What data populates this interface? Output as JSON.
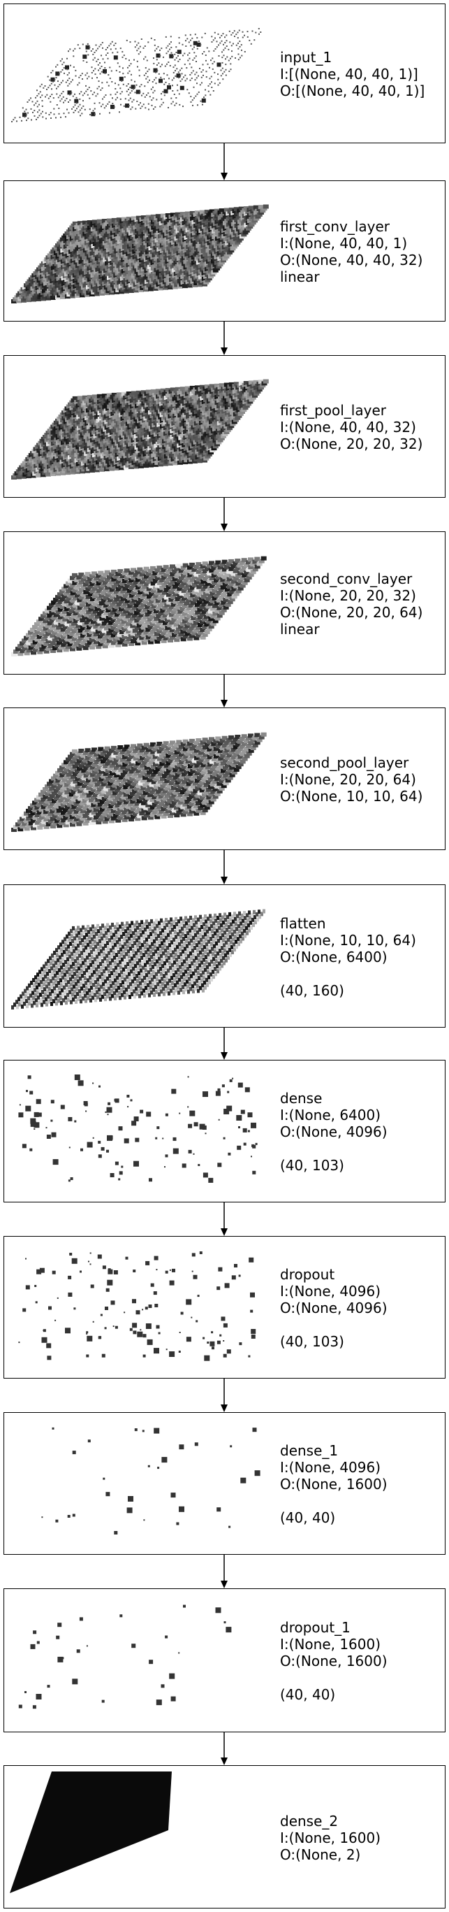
{
  "layers": [
    {
      "name": "input_1",
      "input": "I:[(None, 40, 40, 1)]",
      "output": "O:[(None, 40, 40, 1)]",
      "activation": "",
      "shape": "",
      "viz": "sparse-grid"
    },
    {
      "name": "first_conv_layer",
      "input": "I:(None, 40, 40, 1)",
      "output": "O:(None, 40, 40, 32)",
      "activation": "linear",
      "shape": "",
      "viz": "dense-grid-a"
    },
    {
      "name": "first_pool_layer",
      "input": "I:(None, 40, 40, 32)",
      "output": "O:(None, 20, 20, 32)",
      "activation": "",
      "shape": "",
      "viz": "dense-grid-b"
    },
    {
      "name": "second_conv_layer",
      "input": "I:(None, 20, 20, 32)",
      "output": "O:(None, 20, 20, 64)",
      "activation": "linear",
      "shape": "",
      "viz": "dense-grid-c"
    },
    {
      "name": "second_pool_layer",
      "input": "I:(None, 20, 20, 64)",
      "output": "O:(None, 10, 10, 64)",
      "activation": "",
      "shape": "",
      "viz": "dense-grid-d"
    },
    {
      "name": "flatten",
      "input": "I:(None, 10, 10, 64)",
      "output": "O:(None, 6400)",
      "activation": "",
      "shape": "(40, 160)",
      "viz": "striped-grid"
    },
    {
      "name": "dense",
      "input": "I:(None, 6400)",
      "output": "O:(None, 4096)",
      "activation": "",
      "shape": "(40, 103)",
      "viz": "scatter-many"
    },
    {
      "name": "dropout",
      "input": "I:(None, 4096)",
      "output": "O:(None, 4096)",
      "activation": "",
      "shape": "(40, 103)",
      "viz": "scatter-many"
    },
    {
      "name": "dense_1",
      "input": "I:(None, 4096)",
      "output": "O:(None, 1600)",
      "activation": "",
      "shape": "(40, 40)",
      "viz": "scatter-few"
    },
    {
      "name": "dropout_1",
      "input": "I:(None, 1600)",
      "output": "O:(None, 1600)",
      "activation": "",
      "shape": "(40, 40)",
      "viz": "scatter-few"
    },
    {
      "name": "dense_2",
      "input": "I:(None, 1600)",
      "output": "O:(None, 2)",
      "activation": "",
      "shape": "",
      "viz": "solid-slab"
    }
  ]
}
